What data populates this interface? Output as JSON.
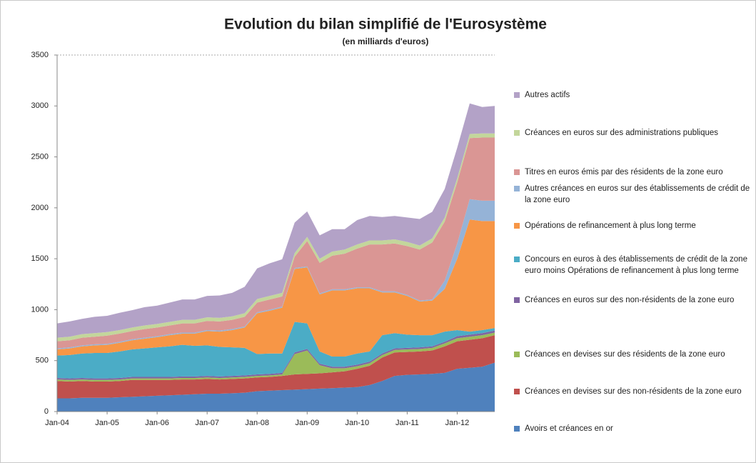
{
  "chart_data": {
    "type": "stacked-area",
    "title": "Evolution du bilan simplifié de l'Eurosystème",
    "subtitle": "(en milliards d'euros)",
    "categories": [
      "Jan-04",
      null,
      null,
      null,
      "Jan-05",
      null,
      null,
      null,
      "Jan-06",
      null,
      null,
      null,
      "Jan-07",
      null,
      null,
      null,
      "Jan-08",
      null,
      null,
      null,
      "Jan-09",
      null,
      null,
      null,
      "Jan-10",
      null,
      null,
      null,
      "Jan-11",
      null,
      null,
      null,
      "Jan-12",
      null,
      null,
      null
    ],
    "ylim": [
      0,
      3500
    ],
    "yticks": [
      0,
      500,
      1000,
      1500,
      2000,
      2500,
      3000,
      3500
    ],
    "grid": false,
    "series": [
      {
        "name": "Avoirs et créances en or",
        "color": "#4f81bd",
        "values": [
          130,
          130,
          135,
          135,
          135,
          140,
          145,
          150,
          155,
          160,
          165,
          170,
          175,
          175,
          180,
          185,
          200,
          205,
          210,
          215,
          220,
          225,
          230,
          235,
          240,
          260,
          300,
          350,
          360,
          365,
          370,
          380,
          420,
          430,
          440,
          480
        ]
      },
      {
        "name": "Créances en devises sur des non-résidents de la zone euro",
        "color": "#c0504d",
        "values": [
          170,
          165,
          165,
          160,
          160,
          160,
          165,
          160,
          155,
          150,
          150,
          145,
          145,
          140,
          140,
          140,
          135,
          135,
          140,
          150,
          150,
          150,
          155,
          160,
          180,
          190,
          230,
          230,
          225,
          225,
          230,
          260,
          270,
          275,
          280,
          270
        ]
      },
      {
        "name": "Créances en devises sur des résidents de la zone euro",
        "color": "#9bbb59",
        "values": [
          15,
          15,
          15,
          15,
          15,
          15,
          15,
          15,
          15,
          15,
          15,
          15,
          15,
          15,
          15,
          15,
          15,
          15,
          15,
          200,
          230,
          80,
          40,
          30,
          25,
          25,
          25,
          25,
          25,
          25,
          25,
          30,
          30,
          30,
          30,
          25
        ]
      },
      {
        "name": "Créances en euros sur des non-résidents de la zone euro",
        "color": "#8064a2",
        "values": [
          15,
          15,
          15,
          15,
          15,
          15,
          15,
          15,
          15,
          15,
          15,
          15,
          15,
          15,
          15,
          15,
          15,
          15,
          15,
          15,
          15,
          15,
          15,
          15,
          15,
          15,
          15,
          15,
          15,
          15,
          15,
          15,
          20,
          20,
          20,
          20
        ]
      },
      {
        "name": "Concours en euros à des établissements de crédit de la zone euro moins Opérations de refinancement à plus long terme",
        "color": "#4bacc6",
        "values": [
          220,
          230,
          240,
          250,
          250,
          260,
          270,
          280,
          290,
          300,
          310,
          300,
          300,
          290,
          280,
          270,
          200,
          200,
          190,
          300,
          250,
          120,
          100,
          100,
          110,
          100,
          180,
          150,
          130,
          120,
          110,
          100,
          60,
          30,
          30,
          25
        ]
      },
      {
        "name": "Opérations de refinancement à plus long terme",
        "color": "#f79646",
        "values": [
          60,
          65,
          70,
          75,
          80,
          85,
          90,
          95,
          100,
          110,
          110,
          120,
          140,
          150,
          170,
          200,
          400,
          420,
          450,
          520,
          550,
          560,
          650,
          650,
          640,
          620,
          420,
          400,
          380,
          330,
          340,
          420,
          700,
          1100,
          1070,
          1050
        ]
      },
      {
        "name": "Autres créances en euros sur des établissements de crédit de la zone euro",
        "color": "#95b3d7",
        "values": [
          10,
          10,
          10,
          10,
          10,
          10,
          10,
          10,
          10,
          10,
          10,
          10,
          10,
          10,
          10,
          10,
          10,
          10,
          10,
          10,
          10,
          10,
          10,
          10,
          10,
          10,
          10,
          10,
          10,
          10,
          10,
          80,
          150,
          200,
          200,
          200
        ]
      },
      {
        "name": "Titres en euros émis par des résidents de la zone euro",
        "color": "#da9694",
        "values": [
          70,
          70,
          75,
          75,
          80,
          80,
          80,
          85,
          85,
          85,
          90,
          90,
          90,
          90,
          90,
          95,
          95,
          100,
          100,
          110,
          250,
          300,
          330,
          350,
          380,
          420,
          460,
          470,
          480,
          500,
          560,
          580,
          600,
          600,
          620,
          620
        ]
      },
      {
        "name": "Créances en euros sur des administrations publiques",
        "color": "#c3d69b",
        "values": [
          35,
          35,
          35,
          35,
          35,
          35,
          35,
          35,
          35,
          35,
          35,
          35,
          35,
          35,
          35,
          35,
          35,
          35,
          35,
          35,
          40,
          40,
          40,
          40,
          40,
          40,
          40,
          40,
          40,
          40,
          40,
          40,
          40,
          40,
          40,
          40
        ]
      },
      {
        "name": "Autres actifs",
        "color": "#b3a2c7",
        "values": [
          140,
          150,
          150,
          160,
          160,
          170,
          170,
          180,
          180,
          190,
          200,
          200,
          210,
          220,
          230,
          260,
          300,
          320,
          330,
          300,
          250,
          230,
          220,
          200,
          240,
          240,
          230,
          230,
          240,
          260,
          260,
          280,
          300,
          300,
          260,
          270
        ]
      }
    ]
  }
}
